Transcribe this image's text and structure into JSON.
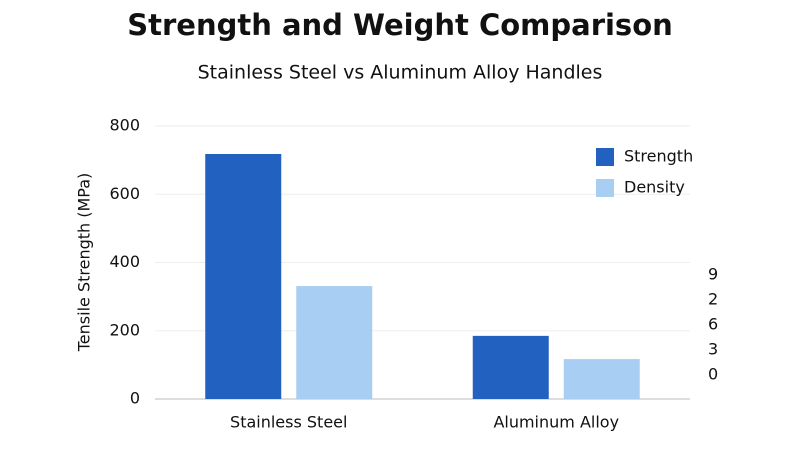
{
  "chart_data": {
    "type": "bar",
    "title": "Strength and Weight Comparison",
    "subtitle": "Stainless Steel vs Aluminum Alloy Handles",
    "y_label": "Tensile Strength (MPa)",
    "categories": [
      "Stainless Steel",
      "Aluminum Alloy"
    ],
    "series": [
      {
        "name": "Strength",
        "color": "#2361c0",
        "values": [
          718,
          185
        ]
      },
      {
        "name": "Density",
        "color": "#a8cff3",
        "values": [
          331,
          117
        ]
      }
    ],
    "ylim": [
      0,
      800
    ],
    "yticks": [
      0,
      200,
      400,
      600,
      800
    ],
    "grid": true,
    "legend": "upper right",
    "right_labels": [
      "9",
      "2",
      "6",
      "3",
      "0"
    ]
  }
}
